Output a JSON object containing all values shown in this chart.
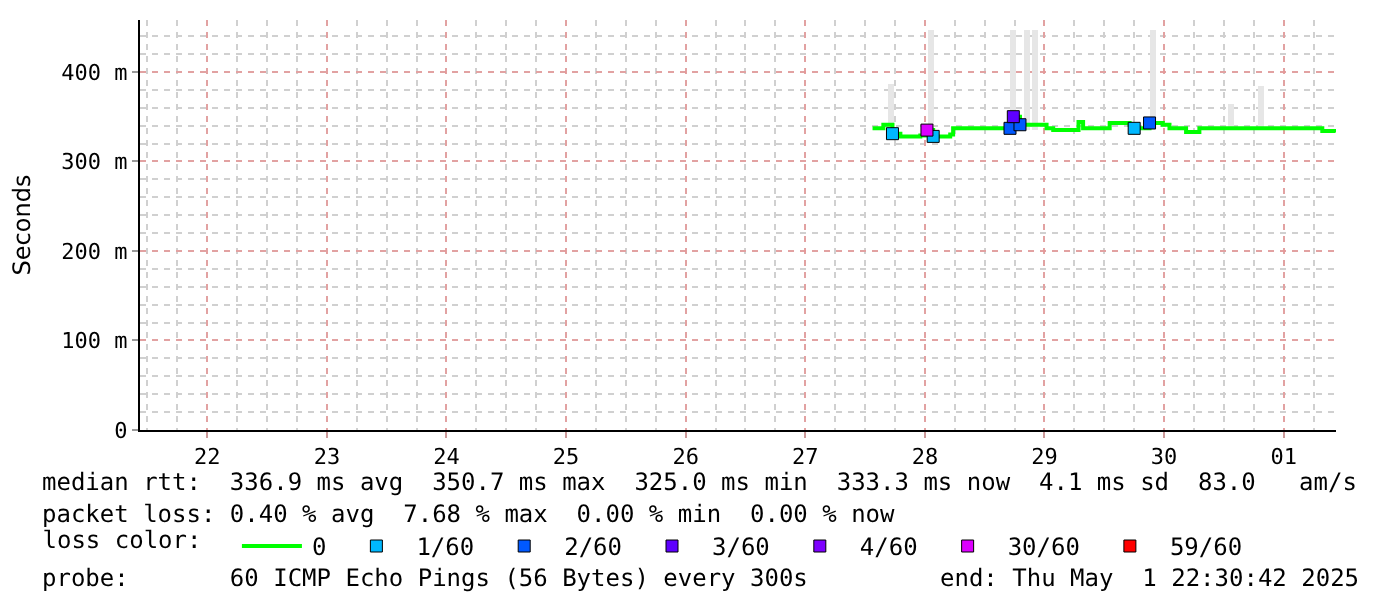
{
  "chart_data": {
    "type": "line",
    "ylabel": "Seconds",
    "legend_title": "loss color:",
    "legend": "bottom",
    "grid": true,
    "line_style": "solid",
    "marker": "none",
    "xlim": [
      "2025-04-21T22:30",
      "2025-05-01T22:30"
    ],
    "xticks": [
      {
        "value": "2025-04-22T12:00",
        "label": "22"
      },
      {
        "value": "2025-04-23T12:00",
        "label": "23"
      },
      {
        "value": "2025-04-24T12:00",
        "label": "24"
      },
      {
        "value": "2025-04-25T12:00",
        "label": "25"
      },
      {
        "value": "2025-04-26T12:00",
        "label": "26"
      },
      {
        "value": "2025-04-27T12:00",
        "label": "27"
      },
      {
        "value": "2025-04-28T12:00",
        "label": "28"
      },
      {
        "value": "2025-04-29T12:00",
        "label": "29"
      },
      {
        "value": "2025-04-30T12:00",
        "label": "30"
      },
      {
        "value": "2025-05-01T12:00",
        "label": "01"
      }
    ],
    "ylim": [
      0,
      458
    ],
    "yticks": [
      {
        "value": 0,
        "label": "0"
      },
      {
        "value": 100,
        "label": "100 m"
      },
      {
        "value": 200,
        "label": "200 m"
      },
      {
        "value": 300,
        "label": "300 m"
      },
      {
        "value": 400,
        "label": "400 m"
      }
    ],
    "series": [
      {
        "type": "bar",
        "color": "#e6e6e6",
        "x": [
          "2025-04-28T05:05",
          "2025-04-28T13:05",
          "2025-04-29T05:45",
          "2025-04-29T08:25",
          "2025-04-29T10:00",
          "2025-04-30T09:35",
          "2025-05-01T01:35",
          "2025-05-01T07:35"
        ],
        "base": [
          332,
          330,
          335,
          335,
          335,
          335,
          335,
          335
        ],
        "values": [
          55,
          117,
          112,
          112,
          112,
          112,
          30,
          49
        ]
      },
      {
        "name": "0",
        "color": "#00ff00",
        "x": [
          "2025-04-28T01:30",
          "2025-04-28T03:40",
          "2025-04-28T05:30",
          "2025-04-28T07:05",
          "2025-04-28T11:05",
          "2025-04-28T12:25",
          "2025-04-28T13:40",
          "2025-04-28T17:05",
          "2025-04-28T17:40",
          "2025-04-29T05:05",
          "2025-04-29T05:45",
          "2025-04-29T07:05",
          "2025-04-29T12:25",
          "2025-04-29T13:45",
          "2025-04-29T17:45",
          "2025-04-29T18:50",
          "2025-04-29T19:45",
          "2025-04-29T23:45",
          "2025-04-30T01:05",
          "2025-04-30T05:05",
          "2025-04-30T06:00",
          "2025-04-30T09:05",
          "2025-04-30T11:45",
          "2025-04-30T13:05",
          "2025-04-30T16:25",
          "2025-04-30T19:05",
          "2025-05-01T17:45",
          "2025-05-01T19:45",
          "2025-05-01T22:25"
        ],
        "values": [
          337,
          341,
          331,
          328,
          329,
          335,
          328,
          330,
          337,
          337,
          350,
          341,
          337,
          335,
          335,
          344,
          337,
          337,
          343,
          341,
          337,
          343,
          341,
          337,
          333,
          337,
          337,
          334,
          333
        ]
      },
      {
        "name": "1/60",
        "type": "scatter",
        "color": "#00b8ff",
        "marker": "square",
        "x": [
          "2025-04-28T05:30",
          "2025-04-28T13:40",
          "2025-04-30T06:00"
        ],
        "values": [
          331,
          328,
          337
        ]
      },
      {
        "name": "2/60",
        "type": "scatter",
        "color": "#0059ff",
        "marker": "square",
        "x": [
          "2025-04-29T05:05",
          "2025-04-29T07:05",
          "2025-04-30T09:05"
        ],
        "values": [
          337,
          341,
          343
        ]
      },
      {
        "name": "3/60",
        "type": "scatter",
        "color": "#5e00ff",
        "marker": "square",
        "x": [
          "2025-04-29T05:45"
        ],
        "values": [
          350
        ]
      },
      {
        "name": "4/60",
        "type": "scatter",
        "color": "#7e00ff",
        "marker": "square"
      },
      {
        "name": "30/60",
        "type": "scatter",
        "color": "#dd00ff",
        "marker": "square",
        "x": [
          "2025-04-28T12:25"
        ],
        "values": [
          335
        ]
      },
      {
        "name": "59/60",
        "type": "scatter",
        "color": "#ff0000",
        "marker": "square"
      }
    ],
    "annotations": [
      "median rtt:  336.9 ms avg  350.7 ms max  325.0 ms min  333.3 ms now  4.1 ms sd  83.0   am/s",
      "packet loss: 0.40 % avg  7.68 % max  0.00 % min  0.00 % now",
      "probe:       60 ICMP Echo Pings (56 Bytes) every 300s",
      "end: Thu May  1 22:30:42 2025"
    ]
  }
}
